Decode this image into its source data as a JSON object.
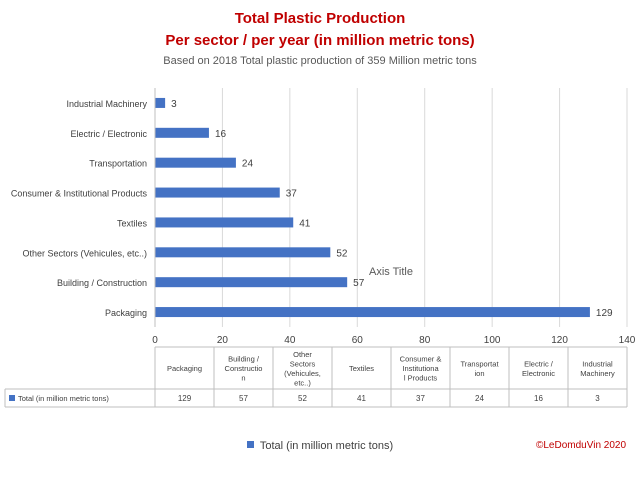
{
  "title": {
    "line1": "Total Plastic Production",
    "line2": "Per sector / per year (in million metric tons)",
    "subtitle": "Based on 2018 Total plastic production of 359 Million metric tons"
  },
  "chart_data": {
    "type": "bar",
    "orientation": "horizontal",
    "categories": [
      "Packaging",
      "Building / Construction",
      "Other Sectors (Vehicules, etc..)",
      "Textiles",
      "Consumer & Institutional Products",
      "Transportation",
      "Electric / Electronic",
      "Industrial Machinery"
    ],
    "series": [
      {
        "name": "Total (in million metric tons)",
        "values": [
          129,
          57,
          52,
          41,
          37,
          24,
          16,
          3
        ]
      }
    ],
    "xlim": [
      0,
      140
    ],
    "x_ticks": [
      0,
      20,
      40,
      60,
      80,
      100,
      120,
      140
    ],
    "axis_title": "Axis Title",
    "data_table_headers": [
      "Packaging",
      "Building / Constructio n",
      "Other Sectors (Vehicules, etc..)",
      "Textiles",
      "Consumer & Institutiona l Products",
      "Transportat ion",
      "Electric / Electronic",
      "Industrial Machinery"
    ],
    "legend_position": "bottom",
    "color": "#4472c4"
  },
  "legend": {
    "label": "Total (in million metric tons)"
  },
  "copyright": "©LeDomduVin 2020"
}
